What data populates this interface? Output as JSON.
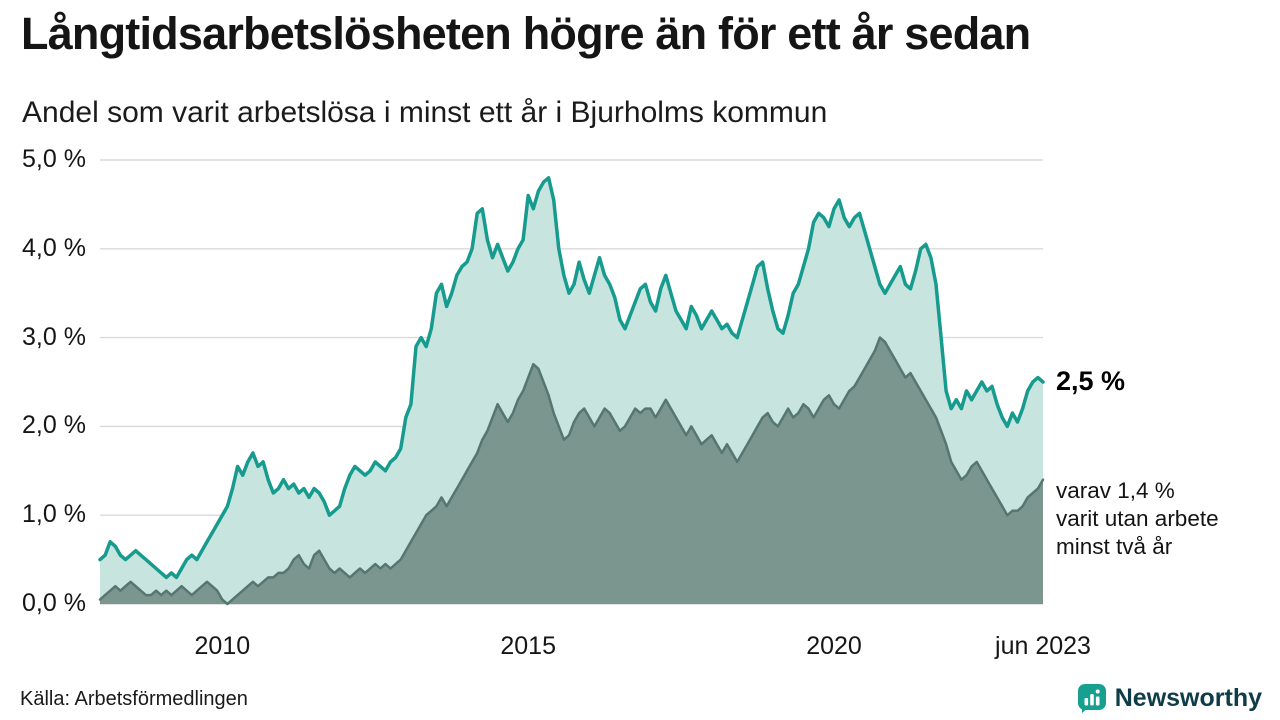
{
  "page": {
    "title": "Långtidsarbetslösheten högre än för ett år sedan",
    "subtitle": "Andel som varit arbetslösa i minst ett år i Bjurholms kommun",
    "source": "Källa: Arbetsförmedlingen",
    "brand": {
      "name": "Newsworthy",
      "icon": "bar-chart-icon",
      "icon_color": "#17a08f",
      "text_color": "#0e3d47"
    }
  },
  "chart_data": {
    "type": "area",
    "title": "Långtidsarbetslösheten högre än för ett år sedan",
    "subtitle": "Andel som varit arbetslösa i minst ett år i Bjurholms kommun",
    "grid": true,
    "grid_color": "#d9d9d9",
    "points_per_year": 12,
    "x_axis": {
      "range": [
        2008.0,
        2023.4167
      ],
      "ticks": [
        {
          "value": 2010,
          "label": "2010"
        },
        {
          "value": 2015,
          "label": "2015"
        },
        {
          "value": 2020,
          "label": "2020"
        },
        {
          "value": 2023.4167,
          "label": "jun 2023"
        }
      ]
    },
    "y_axis": {
      "range": [
        0,
        5
      ],
      "unit": "%",
      "ticks": [
        {
          "value": 0,
          "label": "0,0 %"
        },
        {
          "value": 1,
          "label": "1,0 %"
        },
        {
          "value": 2,
          "label": "2,0 %"
        },
        {
          "value": 3,
          "label": "3,0 %"
        },
        {
          "value": 4,
          "label": "4,0 %"
        },
        {
          "value": 5,
          "label": "5,0 %"
        }
      ]
    },
    "series": [
      {
        "id": "minst-ett-ar",
        "name": "Arbetslösa minst ett år",
        "color": "#169b8e",
        "fill": "#c7e4df",
        "stroke_width": 3.5,
        "latest_value": 2.5,
        "values": [
          0.5,
          0.55,
          0.7,
          0.65,
          0.55,
          0.5,
          0.55,
          0.6,
          0.55,
          0.5,
          0.45,
          0.4,
          0.35,
          0.3,
          0.35,
          0.3,
          0.4,
          0.5,
          0.55,
          0.5,
          0.6,
          0.7,
          0.8,
          0.9,
          1.0,
          1.1,
          1.3,
          1.55,
          1.45,
          1.6,
          1.7,
          1.55,
          1.6,
          1.4,
          1.25,
          1.3,
          1.4,
          1.3,
          1.35,
          1.25,
          1.3,
          1.2,
          1.3,
          1.25,
          1.15,
          1.0,
          1.05,
          1.1,
          1.3,
          1.45,
          1.55,
          1.5,
          1.45,
          1.5,
          1.6,
          1.55,
          1.5,
          1.6,
          1.65,
          1.75,
          2.1,
          2.25,
          2.9,
          3.0,
          2.9,
          3.1,
          3.5,
          3.6,
          3.35,
          3.5,
          3.7,
          3.8,
          3.85,
          4.0,
          4.4,
          4.45,
          4.1,
          3.9,
          4.05,
          3.9,
          3.75,
          3.85,
          4.0,
          4.1,
          4.6,
          4.45,
          4.65,
          4.75,
          4.8,
          4.55,
          4.0,
          3.7,
          3.5,
          3.6,
          3.85,
          3.65,
          3.5,
          3.7,
          3.9,
          3.7,
          3.6,
          3.45,
          3.2,
          3.1,
          3.25,
          3.4,
          3.55,
          3.6,
          3.4,
          3.3,
          3.55,
          3.7,
          3.5,
          3.3,
          3.2,
          3.1,
          3.35,
          3.25,
          3.1,
          3.2,
          3.3,
          3.2,
          3.1,
          3.15,
          3.05,
          3.0,
          3.2,
          3.4,
          3.6,
          3.8,
          3.85,
          3.55,
          3.3,
          3.1,
          3.05,
          3.25,
          3.5,
          3.6,
          3.8,
          4.0,
          4.3,
          4.4,
          4.35,
          4.25,
          4.45,
          4.55,
          4.35,
          4.25,
          4.35,
          4.4,
          4.2,
          4.0,
          3.8,
          3.6,
          3.5,
          3.6,
          3.7,
          3.8,
          3.6,
          3.55,
          3.75,
          4.0,
          4.05,
          3.9,
          3.6,
          3.0,
          2.4,
          2.2,
          2.3,
          2.2,
          2.4,
          2.3,
          2.4,
          2.5,
          2.4,
          2.45,
          2.25,
          2.1,
          2.0,
          2.15,
          2.05,
          2.2,
          2.4,
          2.5,
          2.55,
          2.5
        ]
      },
      {
        "id": "minst-tva-ar",
        "name": "Arbetslösa minst två år",
        "color": "#567670",
        "fill": "#7b968f",
        "stroke_width": 2.5,
        "latest_value": 1.4,
        "values": [
          0.05,
          0.1,
          0.15,
          0.2,
          0.15,
          0.2,
          0.25,
          0.2,
          0.15,
          0.1,
          0.1,
          0.15,
          0.1,
          0.15,
          0.1,
          0.15,
          0.2,
          0.15,
          0.1,
          0.15,
          0.2,
          0.25,
          0.2,
          0.15,
          0.05,
          0.0,
          0.05,
          0.1,
          0.15,
          0.2,
          0.25,
          0.2,
          0.25,
          0.3,
          0.3,
          0.35,
          0.35,
          0.4,
          0.5,
          0.55,
          0.45,
          0.4,
          0.55,
          0.6,
          0.5,
          0.4,
          0.35,
          0.4,
          0.35,
          0.3,
          0.35,
          0.4,
          0.35,
          0.4,
          0.45,
          0.4,
          0.45,
          0.4,
          0.45,
          0.5,
          0.6,
          0.7,
          0.8,
          0.9,
          1.0,
          1.05,
          1.1,
          1.2,
          1.1,
          1.2,
          1.3,
          1.4,
          1.5,
          1.6,
          1.7,
          1.85,
          1.95,
          2.1,
          2.25,
          2.15,
          2.05,
          2.15,
          2.3,
          2.4,
          2.55,
          2.7,
          2.65,
          2.5,
          2.35,
          2.15,
          2.0,
          1.85,
          1.9,
          2.05,
          2.15,
          2.2,
          2.1,
          2.0,
          2.1,
          2.2,
          2.15,
          2.05,
          1.95,
          2.0,
          2.1,
          2.2,
          2.15,
          2.2,
          2.2,
          2.1,
          2.2,
          2.3,
          2.2,
          2.1,
          2.0,
          1.9,
          2.0,
          1.9,
          1.8,
          1.85,
          1.9,
          1.8,
          1.7,
          1.8,
          1.7,
          1.6,
          1.7,
          1.8,
          1.9,
          2.0,
          2.1,
          2.15,
          2.05,
          2.0,
          2.1,
          2.2,
          2.1,
          2.15,
          2.25,
          2.2,
          2.1,
          2.2,
          2.3,
          2.35,
          2.25,
          2.2,
          2.3,
          2.4,
          2.45,
          2.55,
          2.65,
          2.75,
          2.85,
          3.0,
          2.95,
          2.85,
          2.75,
          2.65,
          2.55,
          2.6,
          2.5,
          2.4,
          2.3,
          2.2,
          2.1,
          1.95,
          1.8,
          1.6,
          1.5,
          1.4,
          1.45,
          1.55,
          1.6,
          1.5,
          1.4,
          1.3,
          1.2,
          1.1,
          1.0,
          1.05,
          1.05,
          1.1,
          1.2,
          1.25,
          1.3,
          1.4
        ]
      }
    ],
    "annotations": [
      {
        "id": "latest-value",
        "text": "2,5 %"
      },
      {
        "id": "secondary-note",
        "lines": [
          "varav 1,4 %",
          "varit utan arbete",
          "minst två år"
        ]
      }
    ]
  }
}
